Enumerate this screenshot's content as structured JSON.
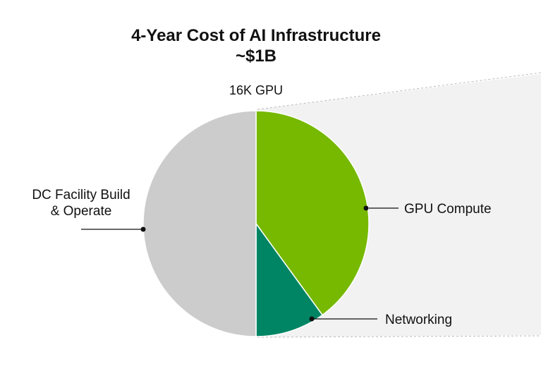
{
  "chart_data": {
    "type": "pie",
    "title": "4-Year Cost of AI Infrastructure",
    "title_line2": "~$1B",
    "subtitle": "16K GPU",
    "categories": [
      "GPU Compute",
      "Networking",
      "DC Facility Build & Operate"
    ],
    "label_lines": [
      [
        "GPU Compute"
      ],
      [
        "Networking"
      ],
      [
        "DC Facility Build",
        "& Operate"
      ]
    ],
    "values": [
      40,
      10,
      50
    ],
    "colors": [
      "#76b900",
      "#008564",
      "#cccccc"
    ],
    "start_angle": "12 o'clock",
    "direction": "clockwise",
    "legend": "none"
  }
}
